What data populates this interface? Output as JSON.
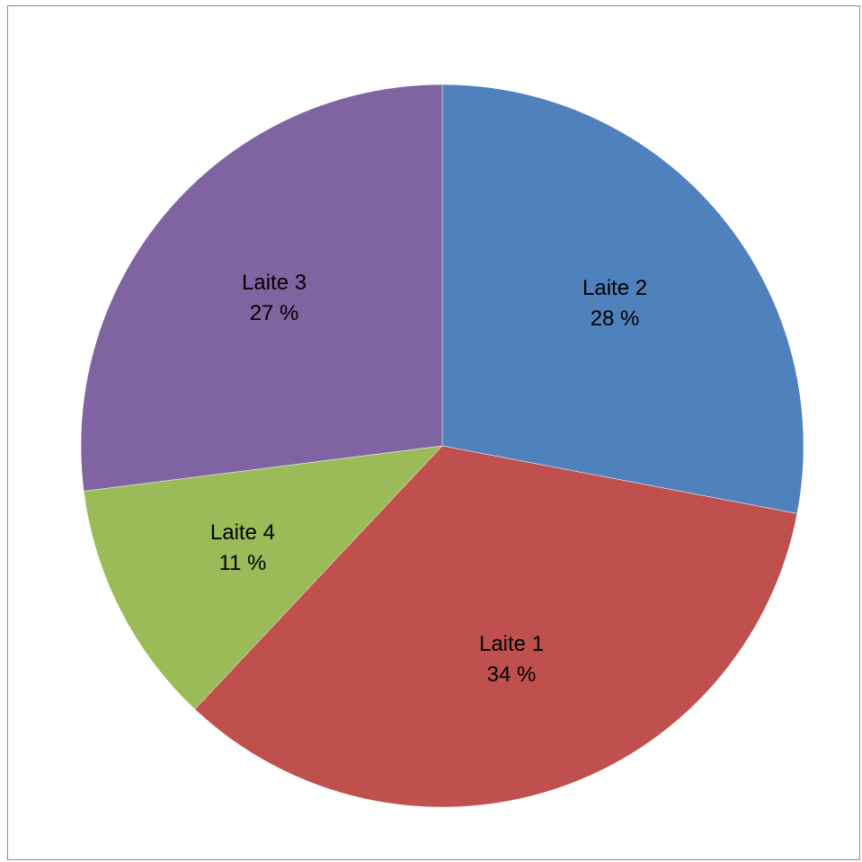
{
  "chart_data": {
    "type": "pie",
    "title": "",
    "start_angle_deg": 0,
    "direction": "clockwise",
    "slices": [
      {
        "label": "Laite 2",
        "value": 28,
        "percent_label": "28 %",
        "color": "#4F81BD"
      },
      {
        "label": "Laite 1",
        "value": 34,
        "percent_label": "34 %",
        "color": "#C0504D"
      },
      {
        "label": "Laite 4",
        "value": 11,
        "percent_label": "11 %",
        "color": "#9BBB59"
      },
      {
        "label": "Laite 3",
        "value": 27,
        "percent_label": "27 %",
        "color": "#8064A2"
      }
    ],
    "legend": "none",
    "data_labels": "inside"
  }
}
